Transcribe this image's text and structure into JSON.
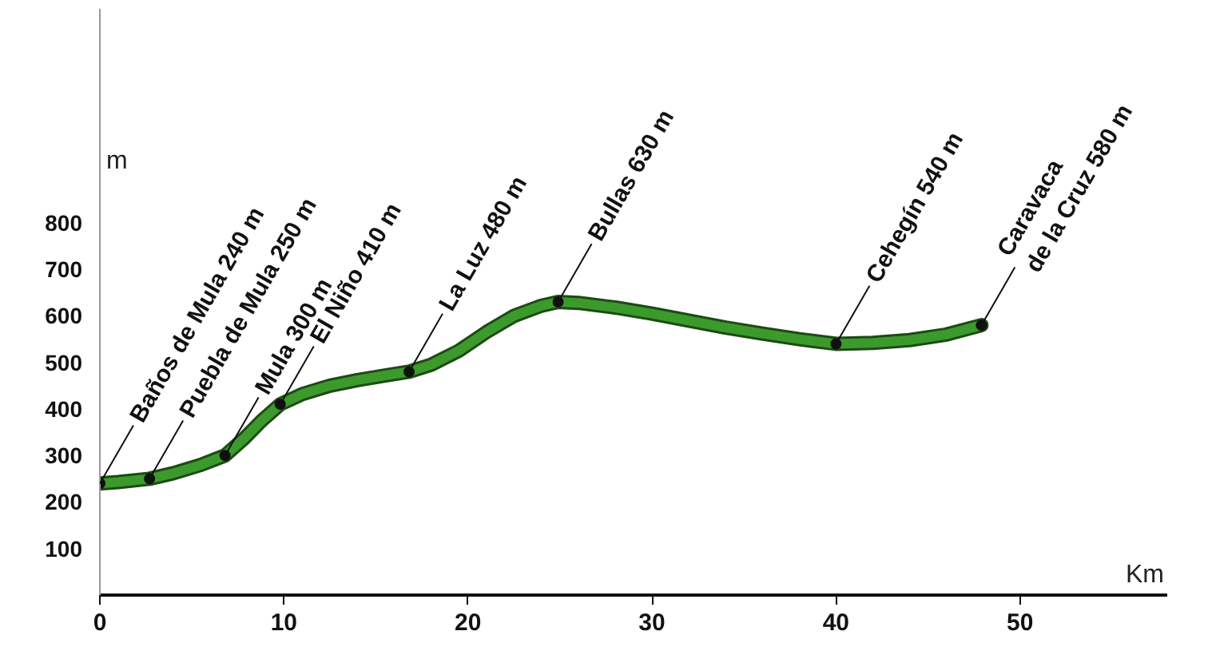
{
  "chart_data": {
    "type": "line",
    "xlabel": "Km",
    "ylabel": "m",
    "xlim": [
      0,
      58
    ],
    "ylim": [
      0,
      1260
    ],
    "xticks": [
      0,
      10,
      20,
      30,
      40,
      50
    ],
    "yticks": [
      100,
      200,
      300,
      400,
      500,
      600,
      700,
      800
    ],
    "grid": false,
    "series": [
      {
        "color": "#3c9a2c",
        "marker": "none",
        "x": [
          0,
          1,
          2.7,
          4,
          5.5,
          6.8,
          7.8,
          8.8,
          9.8,
          11,
          12.5,
          14,
          15.5,
          16.8,
          18,
          19.5,
          21,
          22.5,
          24,
          24.9,
          26,
          28,
          30,
          32,
          34,
          36,
          38,
          40,
          42,
          44,
          46,
          47.9
        ],
        "values": [
          240,
          243,
          250,
          262,
          280,
          300,
          335,
          375,
          410,
          432,
          450,
          462,
          472,
          480,
          495,
          525,
          565,
          600,
          622,
          630,
          628,
          618,
          605,
          590,
          575,
          562,
          550,
          540,
          542,
          548,
          560,
          580
        ]
      },
      {
        "type": "scatter",
        "color": "#111111",
        "marker": "circle",
        "x": [
          0,
          2.7,
          6.8,
          9.8,
          16.8,
          24.9,
          40,
          47.9
        ],
        "values": [
          240,
          250,
          300,
          410,
          480,
          630,
          540,
          580
        ]
      }
    ],
    "annotations": [
      {
        "text": "Baños de Mula 240 m",
        "x": 0,
        "y": 240
      },
      {
        "text": "Puebla de Mula 250 m",
        "x": 2.7,
        "y": 250
      },
      {
        "text": "Mula 300 m",
        "x": 6.8,
        "y": 300
      },
      {
        "text": "El Niño 410 m",
        "x": 9.8,
        "y": 410
      },
      {
        "text": "La Luz 480 m",
        "x": 16.8,
        "y": 480
      },
      {
        "text": "Bullas 630 m",
        "x": 24.9,
        "y": 630
      },
      {
        "text": "Cehegín 540 m",
        "x": 40,
        "y": 540
      },
      {
        "text": "Caravaca\nde la Cruz 580 m",
        "x": 47.9,
        "y": 580
      }
    ]
  }
}
